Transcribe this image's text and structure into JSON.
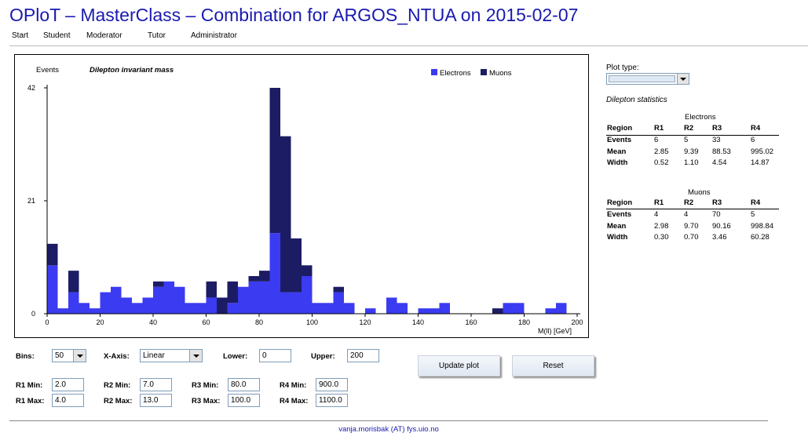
{
  "header": {
    "title": "OPloT – MasterClass – Combination for ARGOS_NTUA on 2015-02-07"
  },
  "nav": {
    "items": [
      "Start",
      "Student",
      "Moderator",
      "Tutor",
      "Administrator"
    ]
  },
  "plot": {
    "ylabel": "Events",
    "title": "Dilepton invariant mass",
    "xlabel": "M(ll) [GeV]",
    "legend": {
      "electrons": "Electrons",
      "muons": "Muons"
    }
  },
  "chart_data": {
    "type": "bar",
    "stacked": true,
    "title": "Dilepton invariant mass",
    "xlabel": "M(ll) [GeV]",
    "ylabel": "Events",
    "x_bin_width": 4,
    "x": [
      2,
      6,
      10,
      14,
      18,
      22,
      26,
      30,
      34,
      38,
      42,
      46,
      50,
      54,
      58,
      62,
      66,
      70,
      74,
      78,
      82,
      86,
      90,
      94,
      98,
      102,
      106,
      110,
      114,
      118,
      122,
      126,
      130,
      134,
      138,
      142,
      146,
      150,
      154,
      158,
      162,
      166,
      170,
      174,
      178,
      182,
      186,
      190,
      194,
      198
    ],
    "series": [
      {
        "name": "Electrons",
        "color": "#3b3bf2",
        "values": [
          9,
          1,
          4,
          2,
          1,
          4,
          5,
          3,
          2,
          3,
          5,
          6,
          5,
          2,
          2,
          3,
          0,
          2,
          5,
          6,
          6,
          15,
          4,
          4,
          7,
          2,
          2,
          4,
          2,
          0,
          1,
          0,
          3,
          2,
          0,
          1,
          1,
          2,
          0,
          0,
          0,
          0,
          0,
          2,
          2,
          0,
          0,
          1,
          2,
          0
        ]
      },
      {
        "name": "Muons",
        "color": "#1c1c64",
        "values": [
          4,
          0,
          4,
          0,
          0,
          0,
          0,
          0,
          0,
          0,
          1,
          0,
          0,
          0,
          0,
          3,
          3,
          4,
          0,
          1,
          2,
          27,
          29,
          10,
          2,
          0,
          0,
          1,
          0,
          0,
          0,
          0,
          0,
          0,
          0,
          0,
          0,
          0,
          0,
          0,
          0,
          0,
          1,
          0,
          0,
          0,
          0,
          0,
          0,
          0
        ]
      }
    ],
    "xlim": [
      0,
      200
    ],
    "ylim": [
      0,
      42
    ],
    "xticks": [
      0,
      20,
      40,
      60,
      80,
      100,
      120,
      140,
      160,
      180,
      200
    ],
    "yticks": [
      0,
      21,
      42
    ],
    "legend_position": "top-right",
    "grid": false
  },
  "side": {
    "plot_type_label": "Plot type:",
    "plot_type_value": "",
    "stats_title": "Dilepton statistics",
    "electrons": {
      "caption": "Electrons",
      "headers": [
        "Region",
        "R1",
        "R2",
        "R3",
        "R4"
      ],
      "rows": [
        [
          "Events",
          "6",
          "5",
          "33",
          "6"
        ],
        [
          "Mean",
          "2.85",
          "9.39",
          "88.53",
          "995.02"
        ],
        [
          "Width",
          "0.52",
          "1.10",
          "4.54",
          "14.87"
        ]
      ]
    },
    "muons": {
      "caption": "Muons",
      "headers": [
        "Region",
        "R1",
        "R2",
        "R3",
        "R4"
      ],
      "rows": [
        [
          "Events",
          "4",
          "4",
          "70",
          "5"
        ],
        [
          "Mean",
          "2.98",
          "9.70",
          "90.16",
          "998.84"
        ],
        [
          "Width",
          "0.30",
          "0.70",
          "3.46",
          "60.28"
        ]
      ]
    }
  },
  "controls": {
    "bins_label": "Bins:",
    "bins_value": "50",
    "xaxis_label": "X-Axis:",
    "xaxis_value": "Linear",
    "lower_label": "Lower:",
    "lower_value": "0",
    "upper_label": "Upper:",
    "upper_value": "200",
    "update_label": "Update plot",
    "reset_label": "Reset",
    "r1min_label": "R1 Min:",
    "r1min_value": "2.0",
    "r1max_label": "R1 Max:",
    "r1max_value": "4.0",
    "r2min_label": "R2 Min:",
    "r2min_value": "7.0",
    "r2max_label": "R2 Max:",
    "r2max_value": "13.0",
    "r3min_label": "R3 Min:",
    "r3min_value": "80.0",
    "r3max_label": "R3 Max:",
    "r3max_value": "100.0",
    "r4min_label": "R4 Min:",
    "r4min_value": "900.0",
    "r4max_label": "R4 Max:",
    "r4max_value": "1100.0"
  },
  "footer": {
    "contact": "vanja.morisbak (AT) fys.uio.no"
  }
}
